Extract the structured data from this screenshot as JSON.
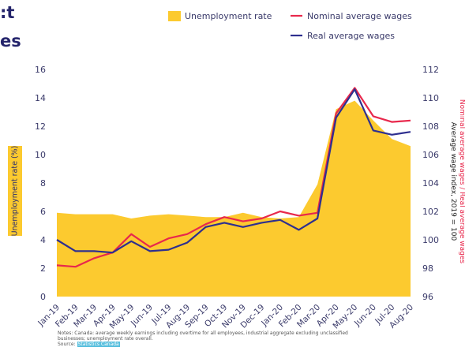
{
  "title_fragments": [
    ":t",
    "es"
  ],
  "notes": {
    "text": "Notes: Canada: average weekly earnings including overtime for all employees, industrial aggregate excluding unclassified businesses; unemployment rate overall.",
    "source_label": "Source:",
    "source_link": "Statistics Canada"
  },
  "colors": {
    "unemployment": "#fcca2f",
    "nominal": "#e8284c",
    "real": "#2e2f8f",
    "axis_text": "#3a3a6a",
    "right_label_red": "#e8284c"
  },
  "chart_data": {
    "type": "area",
    "categories": [
      "Jan-19",
      "Feb-19",
      "Mar-19",
      "Apr-19",
      "May-19",
      "Jun-19",
      "Jul-19",
      "Aug-19",
      "Sep-19",
      "Oct-19",
      "Nov-19",
      "Dec-19",
      "Jan-20",
      "Feb-20",
      "Mar-20",
      "Apr-20",
      "May-20",
      "Jun-20",
      "Jul-20",
      "Aug-20"
    ],
    "legend": [
      "Unemployment rate",
      "Nominal average wages",
      "Real average wages"
    ],
    "legend_position": "top-right",
    "left_axis": {
      "label": "Unemployment rate (%)",
      "ylim": [
        0,
        16
      ],
      "ticks": [
        0,
        2,
        4,
        6,
        8,
        10,
        12,
        14,
        16
      ]
    },
    "right_axis": {
      "label_black": "Average wage index, 2019 = 100",
      "label_red": "Nominal average wages",
      "label_blue": "Real average wages",
      "ylim": [
        96,
        112
      ],
      "ticks": [
        96,
        98,
        100,
        102,
        104,
        106,
        108,
        110,
        112
      ]
    },
    "series": [
      {
        "name": "Unemployment rate",
        "axis": "left",
        "kind": "area",
        "values": [
          5.9,
          5.8,
          5.8,
          5.8,
          5.5,
          5.7,
          5.8,
          5.7,
          5.6,
          5.6,
          5.9,
          5.6,
          5.5,
          5.6,
          7.9,
          13.2,
          13.8,
          12.4,
          11.1,
          10.6
        ]
      },
      {
        "name": "Nominal average wages",
        "axis": "right",
        "kind": "line",
        "values": [
          98.2,
          98.1,
          98.7,
          99.1,
          100.4,
          99.5,
          100.1,
          100.4,
          101.1,
          101.6,
          101.3,
          101.5,
          102.0,
          101.7,
          101.9,
          108.9,
          110.7,
          108.7,
          108.3,
          108.4
        ]
      },
      {
        "name": "Real average wages",
        "axis": "right",
        "kind": "line",
        "values": [
          100.0,
          99.2,
          99.2,
          99.1,
          99.9,
          99.2,
          99.3,
          99.8,
          100.9,
          101.2,
          100.9,
          101.2,
          101.4,
          100.7,
          101.5,
          108.6,
          110.6,
          107.7,
          107.4,
          107.6
        ]
      }
    ]
  }
}
